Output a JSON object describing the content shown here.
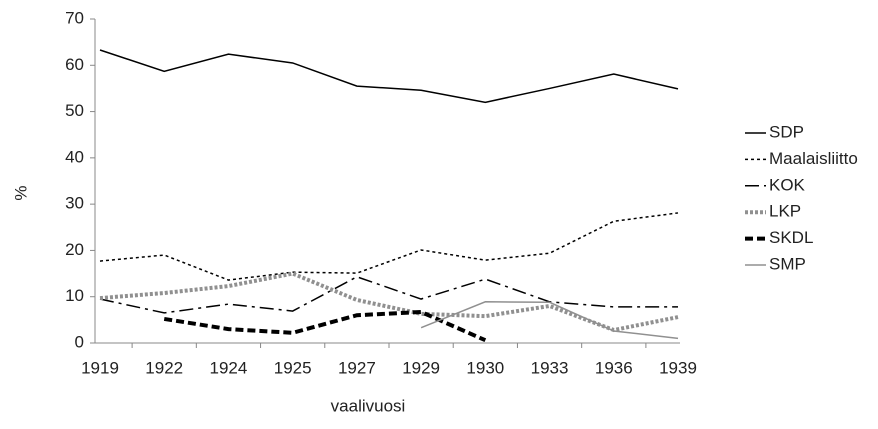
{
  "chart_data": {
    "type": "line",
    "xlabel": "vaalivuosi",
    "ylabel": "%",
    "categories": [
      "1919",
      "1922",
      "1924",
      "1925",
      "1927",
      "1929",
      "1930",
      "1933",
      "1936",
      "1939"
    ],
    "series": [
      {
        "name": "SDP",
        "color": "#000000",
        "values": [
          63.3,
          58.7,
          62.4,
          60.5,
          55.5,
          54.6,
          52.0,
          55.0,
          58.1,
          54.9
        ]
      },
      {
        "name": "Maalaisliitto",
        "color": "#000000",
        "values": [
          17.7,
          19.0,
          13.6,
          15.3,
          15.1,
          20.1,
          17.9,
          19.4,
          26.3,
          28.1
        ]
      },
      {
        "name": "KOK",
        "color": "#000000",
        "values": [
          9.5,
          6.5,
          8.4,
          6.9,
          14.3,
          9.5,
          13.8,
          8.9,
          7.8,
          7.8
        ]
      },
      {
        "name": "LKP",
        "color": "#909090",
        "values": [
          9.7,
          10.8,
          12.3,
          15.0,
          9.3,
          6.3,
          5.8,
          8.0,
          2.8,
          5.6
        ]
      },
      {
        "name": "SKDL",
        "color": "#000000",
        "values": [
          null,
          5.2,
          3.0,
          2.2,
          6.0,
          6.7,
          0.6,
          null,
          null,
          null
        ]
      },
      {
        "name": "SMP",
        "color": "#909090",
        "values": [
          null,
          null,
          null,
          null,
          null,
          3.3,
          8.9,
          8.8,
          2.6,
          1.0
        ]
      }
    ],
    "ylim": [
      0,
      70
    ],
    "yticks": [
      0,
      10,
      20,
      30,
      40,
      50,
      60,
      70
    ],
    "grid": false,
    "legend": "right"
  }
}
